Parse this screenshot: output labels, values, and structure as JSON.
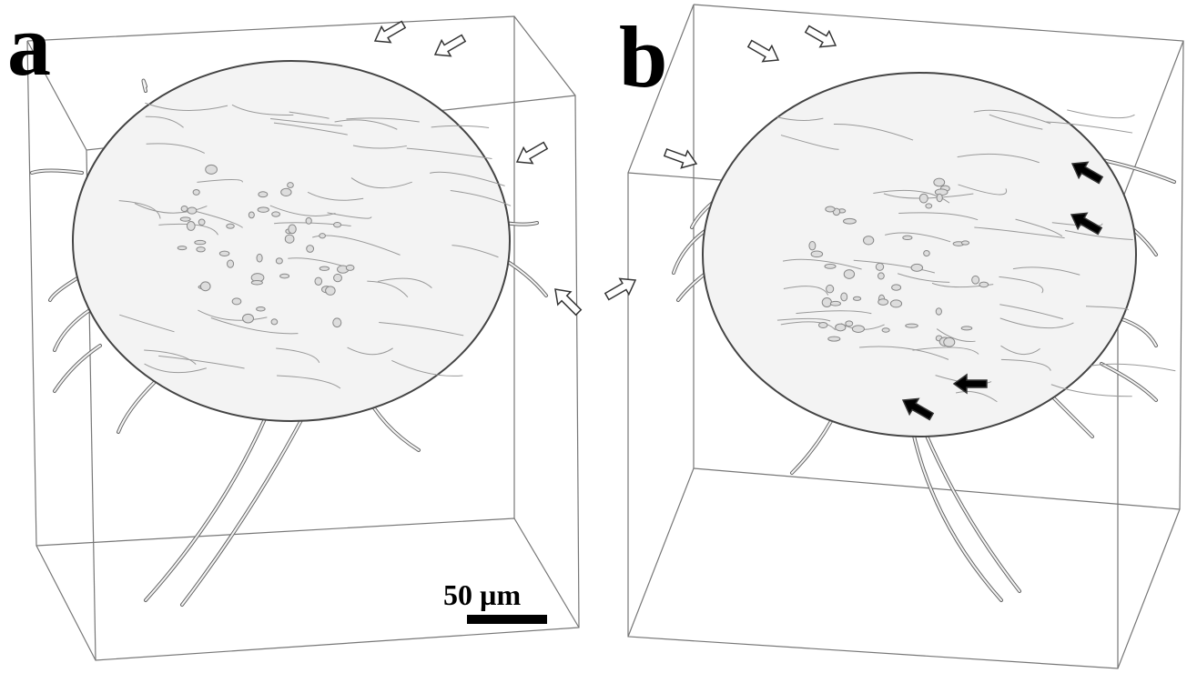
{
  "panels": [
    {
      "label": "a",
      "scale_bar": "50 µm"
    },
    {
      "label": "b"
    }
  ]
}
